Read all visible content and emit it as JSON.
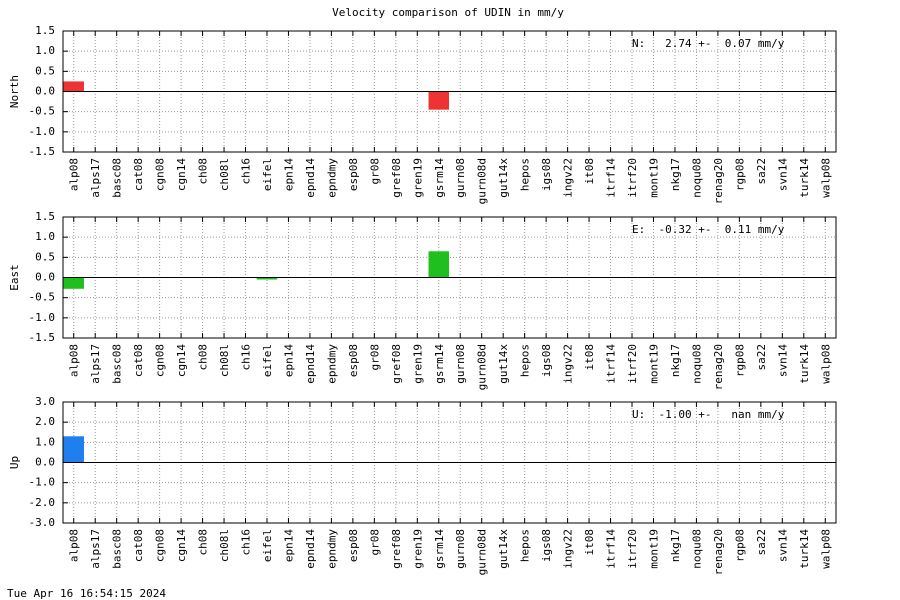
{
  "title": "Velocity comparison of UDIN in mm/y",
  "footer": "Tue Apr 16 16:54:15 2024",
  "chart_data": [
    {
      "type": "bar",
      "ylabel": "North",
      "annotation": "N:   2.74 +-  0.07 mm/y",
      "color": "#ee3333",
      "categories": [
        "alp08",
        "alps17",
        "basc08",
        "cat08",
        "cgn08",
        "cgn14",
        "ch08",
        "ch08l",
        "ch16",
        "eifel",
        "epn14",
        "epnd14",
        "epndmy",
        "esp08",
        "gr08",
        "gref08",
        "gren19",
        "gsrm14",
        "gurn08",
        "gurn08d",
        "gut14x",
        "hepos",
        "igs08",
        "ingv22",
        "it08",
        "itrf14",
        "itrf20",
        "mont19",
        "nkg17",
        "noqu08",
        "renag20",
        "rgp08",
        "sa22",
        "svn14",
        "turk14",
        "walp08"
      ],
      "values": [
        0.25,
        0,
        0,
        0,
        0,
        0,
        0,
        0,
        0,
        0,
        0,
        0,
        0,
        0,
        0,
        0,
        0,
        -0.45,
        0,
        0,
        0,
        0,
        0,
        0,
        0,
        0,
        0,
        0,
        0,
        0,
        0,
        0,
        0,
        0,
        0,
        0
      ],
      "ylim": [
        -1.5,
        1.5
      ],
      "yticks": [
        1.5,
        {
          "value": 1,
          "label": "1.0"
        },
        0.5,
        {
          "value": 0,
          "label": "0.0"
        },
        -0.5,
        {
          "value": -1,
          "label": "-1.0"
        },
        -1.5
      ],
      "grid": true
    },
    {
      "type": "bar",
      "ylabel": "East",
      "annotation": "E:  -0.32 +-  0.11 mm/y",
      "color": "#1fbf1f",
      "categories": [
        "alp08",
        "alps17",
        "basc08",
        "cat08",
        "cgn08",
        "cgn14",
        "ch08",
        "ch08l",
        "ch16",
        "eifel",
        "epn14",
        "epnd14",
        "epndmy",
        "esp08",
        "gr08",
        "gref08",
        "gren19",
        "gsrm14",
        "gurn08",
        "gurn08d",
        "gut14x",
        "hepos",
        "igs08",
        "ingv22",
        "it08",
        "itrf14",
        "itrf20",
        "mont19",
        "nkg17",
        "noqu08",
        "renag20",
        "rgp08",
        "sa22",
        "svn14",
        "turk14",
        "walp08"
      ],
      "values": [
        -0.28,
        0,
        0,
        0,
        0,
        0,
        0,
        0,
        0,
        -0.05,
        0,
        0,
        0,
        0,
        0,
        0,
        0,
        0.65,
        0,
        0,
        0,
        0,
        0,
        0,
        0,
        0,
        0,
        0,
        0,
        0,
        0,
        0,
        0,
        0,
        0,
        0
      ],
      "ylim": [
        -1.5,
        1.5
      ],
      "yticks": [
        1.5,
        {
          "value": 1,
          "label": "1.0"
        },
        0.5,
        {
          "value": 0,
          "label": "0.0"
        },
        -0.5,
        {
          "value": -1,
          "label": "-1.0"
        },
        -1.5
      ],
      "grid": true
    },
    {
      "type": "bar",
      "ylabel": "Up",
      "annotation": "U:  -1.00 +-   nan mm/y",
      "color": "#1f7fef",
      "categories": [
        "alp08",
        "alps17",
        "basc08",
        "cat08",
        "cgn08",
        "cgn14",
        "ch08",
        "ch08l",
        "ch16",
        "eifel",
        "epn14",
        "epnd14",
        "epndmy",
        "esp08",
        "gr08",
        "gref08",
        "gren19",
        "gsrm14",
        "gurn08",
        "gurn08d",
        "gut14x",
        "hepos",
        "igs08",
        "ingv22",
        "it08",
        "itrf14",
        "itrf20",
        "mont19",
        "nkg17",
        "noqu08",
        "renag20",
        "rgp08",
        "sa22",
        "svn14",
        "turk14",
        "walp08"
      ],
      "values": [
        1.3,
        0,
        0,
        0,
        0,
        0,
        0,
        0,
        0,
        0,
        0,
        0,
        0,
        0,
        0,
        0,
        0,
        0,
        0,
        0,
        0,
        0,
        0,
        0,
        0,
        0,
        0,
        0,
        0,
        0,
        0,
        0,
        0,
        0,
        0,
        0
      ],
      "ylim": [
        -3,
        3
      ],
      "yticks": [
        {
          "value": 3,
          "label": "3.0"
        },
        {
          "value": 2,
          "label": "2.0"
        },
        {
          "value": 1,
          "label": "1.0"
        },
        {
          "value": 0,
          "label": "0.0"
        },
        {
          "value": -1,
          "label": "-1.0"
        },
        {
          "value": -2,
          "label": "-2.0"
        },
        {
          "value": -3,
          "label": "-3.0"
        }
      ],
      "grid": true
    }
  ]
}
